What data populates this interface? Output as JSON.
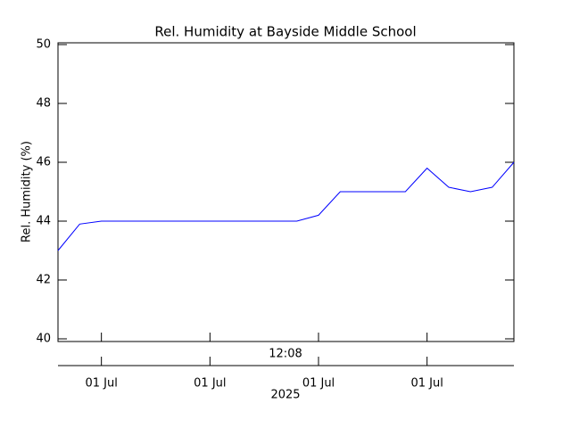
{
  "chart_data": {
    "type": "line",
    "title": "Rel. Humidity at Bayside Middle School",
    "ylabel": "Rel. Humidity (%)",
    "x_top_label": "12:08",
    "xlabel": "2025",
    "x": [
      0,
      1,
      2,
      3,
      4,
      5,
      6,
      7,
      8,
      9,
      10,
      11,
      12,
      13,
      14,
      15,
      16,
      17,
      18,
      19,
      20,
      21
    ],
    "series": [
      {
        "name": "Rel. Humidity",
        "color": "#0000ff",
        "values": [
          43.0,
          43.9,
          44.0,
          44.0,
          44.0,
          44.0,
          44.0,
          44.0,
          44.0,
          44.0,
          44.0,
          44.0,
          44.2,
          45.0,
          45.0,
          45.0,
          45.0,
          45.8,
          45.15,
          45.0,
          45.15,
          46.0
        ]
      }
    ],
    "xlim": [
      0,
      21
    ],
    "xticks": [
      {
        "value": 2,
        "label": "01 Jul"
      },
      {
        "value": 7,
        "label": "01 Jul"
      },
      {
        "value": 12,
        "label": "01 Jul"
      },
      {
        "value": 17,
        "label": "01 Jul"
      }
    ],
    "ylim": [
      40,
      50
    ],
    "yticks": [
      40,
      42,
      44,
      46,
      48,
      50
    ]
  }
}
